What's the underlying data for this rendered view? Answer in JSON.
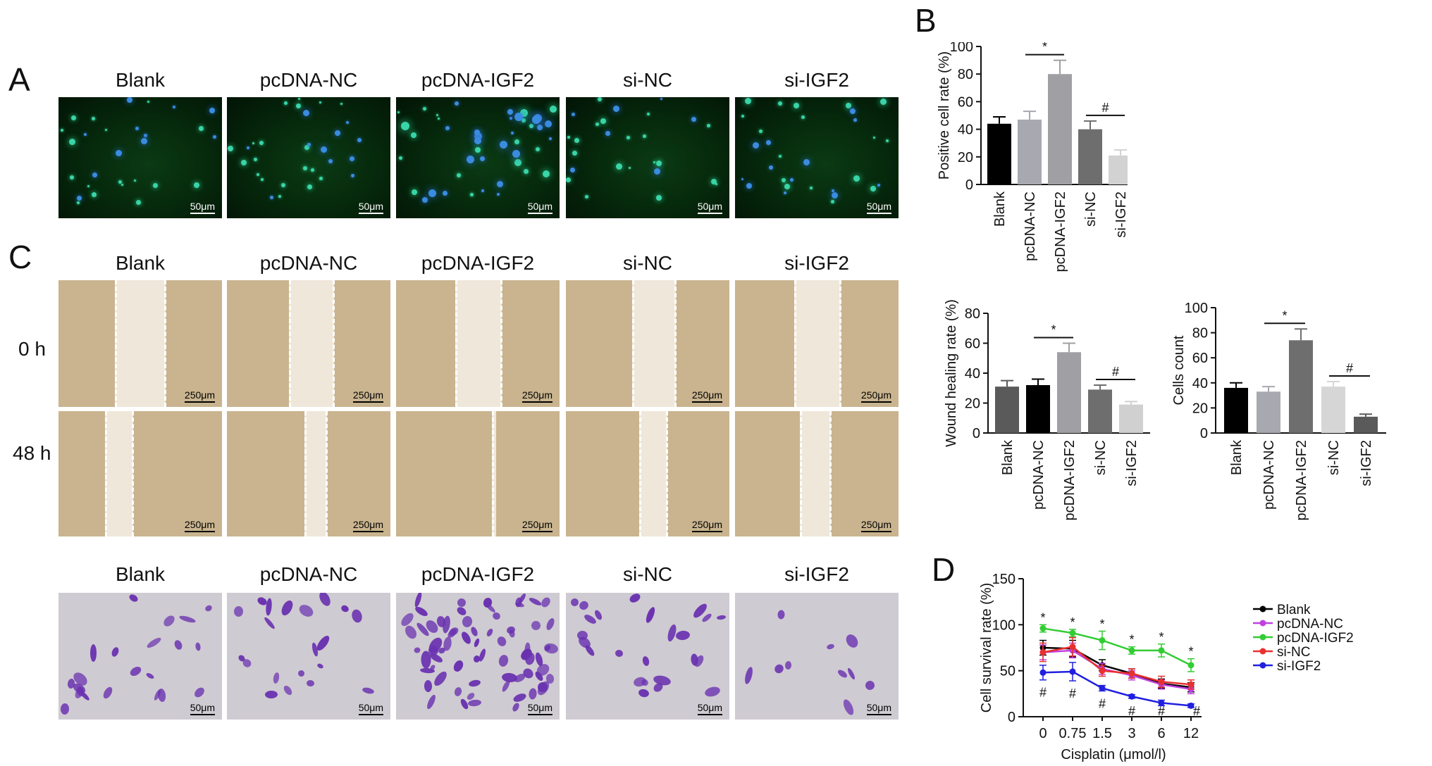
{
  "panel_labels": [
    "A",
    "B",
    "C",
    "D"
  ],
  "groups": [
    "Blank",
    "pcDNA-NC",
    "pcDNA-IGF2",
    "si-NC",
    "si-IGF2"
  ],
  "time_labels": [
    "0 h",
    "48 h"
  ],
  "scale_bars": {
    "fluorescence": "50μm",
    "wound": "250μm",
    "transwell": "50μm"
  },
  "colors": {
    "fluorescence_bg": "#062a0c",
    "fluorescence_spot": "#39d4a8",
    "wound_bg": "#c9b48f",
    "transwell_bg": "#cfcbd2",
    "transwell_cell": "#6a32b0"
  },
  "chart_data": [
    {
      "id": "B",
      "type": "bar",
      "categories": [
        "Blank",
        "pcDNA-NC",
        "pcDNA-IGF2",
        "si-NC",
        "si-IGF2"
      ],
      "values": [
        44,
        47,
        80,
        40,
        21
      ],
      "errors": [
        5,
        6,
        10,
        6,
        4
      ],
      "colors": [
        "#000000",
        "#a8a8b0",
        "#a0a0a4",
        "#6e6e6e",
        "#d2d2d2"
      ],
      "ylabel": "Positive cell rate (%)",
      "ylim": [
        0,
        100
      ],
      "yticks": [
        0,
        20,
        40,
        60,
        80,
        100
      ],
      "significance": [
        {
          "symbol": "*",
          "from": "pcDNA-NC",
          "to": "pcDNA-IGF2"
        },
        {
          "symbol": "#",
          "from": "si-NC",
          "to": "si-IGF2"
        }
      ]
    },
    {
      "id": "wound",
      "type": "bar",
      "categories": [
        "Blank",
        "pcDNA-NC",
        "pcDNA-IGF2",
        "si-NC",
        "si-IGF2"
      ],
      "values": [
        31,
        32,
        54,
        29,
        19
      ],
      "errors": [
        4,
        4,
        6,
        3,
        2
      ],
      "colors": [
        "#5a5a5a",
        "#000000",
        "#a0a0a4",
        "#6e6e6e",
        "#d0d0d0"
      ],
      "ylabel": "Wound healing rate (%)",
      "ylim": [
        0,
        80
      ],
      "yticks": [
        0,
        20,
        40,
        60,
        80
      ],
      "significance": [
        {
          "symbol": "*",
          "from": "pcDNA-NC",
          "to": "pcDNA-IGF2"
        },
        {
          "symbol": "#",
          "from": "si-NC",
          "to": "si-IGF2"
        }
      ]
    },
    {
      "id": "cells",
      "type": "bar",
      "categories": [
        "Blank",
        "pcDNA-NC",
        "pcDNA-IGF2",
        "si-NC",
        "si-IGF2"
      ],
      "values": [
        36,
        33,
        74,
        37,
        13
      ],
      "errors": [
        4,
        4,
        9,
        4,
        2
      ],
      "colors": [
        "#000000",
        "#a8a8b0",
        "#6e6e6e",
        "#d6d6d6",
        "#5a5a5a"
      ],
      "ylabel": "Cells count",
      "ylim": [
        0,
        100
      ],
      "yticks": [
        0,
        20,
        40,
        60,
        80,
        100
      ],
      "significance": [
        {
          "symbol": "*",
          "from": "pcDNA-NC",
          "to": "pcDNA-IGF2"
        },
        {
          "symbol": "#",
          "from": "si-NC",
          "to": "si-IGF2"
        }
      ]
    },
    {
      "id": "D",
      "type": "line",
      "x": [
        "0",
        "0.75",
        "1.5",
        "3",
        "6",
        "12"
      ],
      "xlabel": "Cisplatin (μmol/l)",
      "ylabel": "Cell survival rate (%)",
      "ylim": [
        0,
        150
      ],
      "yticks": [
        0,
        50,
        100,
        150
      ],
      "series": [
        {
          "name": "Blank",
          "color": "#000000",
          "values": [
            75,
            74,
            56,
            47,
            36,
            32
          ],
          "errors": [
            8,
            9,
            6,
            5,
            5,
            5
          ]
        },
        {
          "name": "pcDNA-NC",
          "color": "#c040e0",
          "values": [
            70,
            72,
            52,
            45,
            35,
            30
          ],
          "errors": [
            8,
            8,
            6,
            5,
            5,
            5
          ]
        },
        {
          "name": "pcDNA-IGF2",
          "color": "#33cc33",
          "values": [
            96,
            91,
            83,
            72,
            72,
            56
          ],
          "errors": [
            4,
            4,
            10,
            4,
            7,
            7
          ]
        },
        {
          "name": "si-NC",
          "color": "#e83030",
          "values": [
            70,
            76,
            50,
            47,
            38,
            35
          ],
          "errors": [
            10,
            10,
            6,
            5,
            6,
            5
          ]
        },
        {
          "name": "si-IGF2",
          "color": "#2020e0",
          "values": [
            48,
            49,
            31,
            22,
            15,
            12
          ],
          "errors": [
            8,
            10,
            3,
            2,
            3,
            2
          ]
        }
      ],
      "annotations_star": [
        "*",
        "*",
        "*",
        "*",
        "*",
        "*"
      ],
      "annotations_hash": [
        "#",
        "#",
        "#",
        "#",
        "#",
        "#"
      ],
      "legend_position": "right"
    }
  ]
}
